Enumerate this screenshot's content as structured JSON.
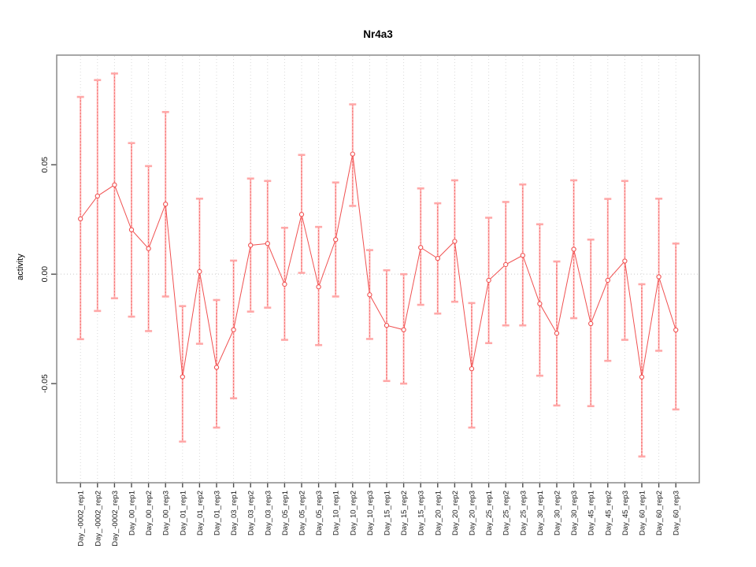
{
  "figure": {
    "title": "Nr4a3",
    "ylabel": "activity"
  },
  "chart_data": {
    "type": "line",
    "title": "Nr4a3",
    "xlabel": "",
    "ylabel": "activity",
    "legend": "none",
    "grid": "vertical dotted gridlines at each category; dotted horizontal line at y=0",
    "ylim": [
      -0.0953,
      0.1001
    ],
    "y_ticks": [
      {
        "value": 0.05,
        "label": "0.05"
      },
      {
        "value": 0.0,
        "label": "0.00"
      },
      {
        "value": -0.05,
        "label": "-0.05"
      }
    ],
    "categories": [
      "Day_-0002_rep1",
      "Day_-0002_rep2",
      "Day_-0002_rep3",
      "Day_00_rep1",
      "Day_00_rep2",
      "Day_00_rep3",
      "Day_01_rep1",
      "Day_01_rep2",
      "Day_01_rep3",
      "Day_03_rep1",
      "Day_03_rep2",
      "Day_03_rep3",
      "Day_05_rep1",
      "Day_05_rep2",
      "Day_05_rep3",
      "Day_10_rep1",
      "Day_10_rep2",
      "Day_10_rep3",
      "Day_15_rep1",
      "Day_15_rep2",
      "Day_15_rep3",
      "Day_20_rep1",
      "Day_20_rep2",
      "Day_20_rep3",
      "Day_25_rep1",
      "Day_25_rep2",
      "Day_25_rep3",
      "Day_30_rep1",
      "Day_30_rep2",
      "Day_30_rep3",
      "Day_45_rep1",
      "Day_45_rep2",
      "Day_45_rep3",
      "Day_60_rep1",
      "Day_60_rep2",
      "Day_60_rep3"
    ],
    "series": [
      {
        "name": "activity",
        "values": [
          0.0253,
          0.0357,
          0.0408,
          0.0203,
          0.0117,
          0.032,
          -0.0469,
          0.0012,
          -0.0426,
          -0.0254,
          0.0132,
          0.014,
          -0.0046,
          0.0273,
          -0.0058,
          0.0158,
          0.0549,
          -0.0094,
          -0.0234,
          -0.0254,
          0.0122,
          0.0072,
          0.015,
          -0.0432,
          -0.0028,
          0.0044,
          0.0086,
          -0.0135,
          -0.027,
          0.0114,
          -0.0226,
          -0.0028,
          0.006,
          -0.047,
          -0.0012,
          -0.0255
        ]
      },
      {
        "name": "error_lower",
        "values": [
          -0.0297,
          -0.0168,
          -0.011,
          -0.0194,
          -0.026,
          -0.0102,
          -0.0765,
          -0.0318,
          -0.0701,
          -0.0567,
          -0.0171,
          -0.0153,
          -0.03,
          0.0006,
          -0.0324,
          -0.0102,
          0.0312,
          -0.0296,
          -0.0488,
          -0.05,
          -0.014,
          -0.018,
          -0.0126,
          -0.0701,
          -0.0315,
          -0.0234,
          -0.0234,
          -0.0464,
          -0.06,
          -0.0201,
          -0.0603,
          -0.0396,
          -0.03,
          -0.0833,
          -0.035,
          -0.0618
        ]
      },
      {
        "name": "error_upper",
        "values": [
          0.081,
          0.0887,
          0.0917,
          0.0599,
          0.0494,
          0.0741,
          -0.0146,
          0.0345,
          -0.0118,
          0.0062,
          0.0437,
          0.0426,
          0.0212,
          0.0545,
          0.0216,
          0.0419,
          0.0776,
          0.011,
          0.0018,
          0.0,
          0.0392,
          0.0324,
          0.0429,
          -0.0132,
          0.0258,
          0.033,
          0.041,
          0.0228,
          0.0058,
          0.0429,
          0.0158,
          0.0344,
          0.0426,
          -0.0046,
          0.0345,
          0.014
        ]
      }
    ],
    "colors": {
      "point_line": "#f05050",
      "error_bar_light": "#ffb3b3",
      "error_bar_dash": "#f26666",
      "error_cap": "#ffa8a8",
      "grid": "#d9d9d9",
      "zero_line": "#c9c9c9",
      "box": "#8a8a8a",
      "tick": "#4d4d4d",
      "text": "#1a1a1a"
    }
  }
}
